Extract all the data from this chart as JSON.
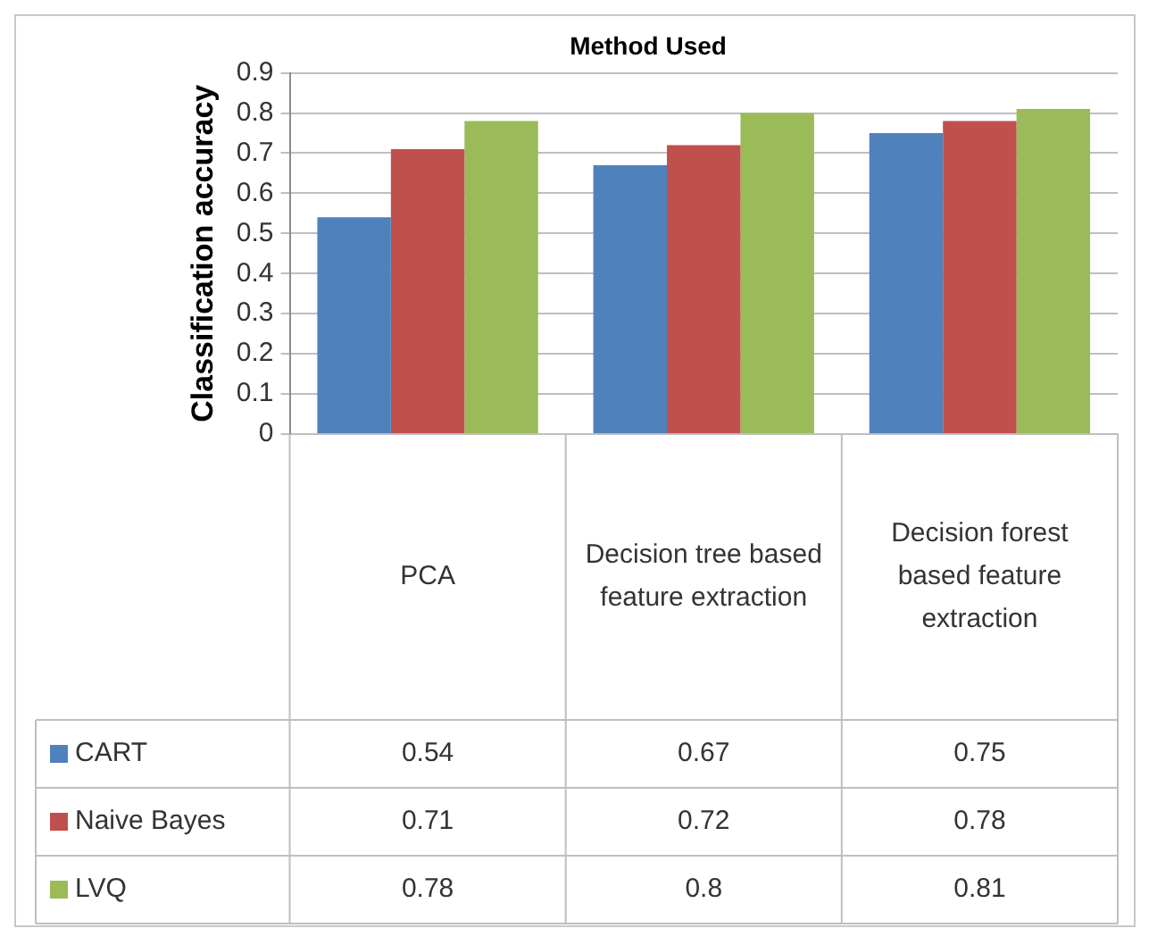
{
  "chart_data": {
    "type": "bar",
    "title": "Method Used",
    "ylabel": "Classification accuracy",
    "categories": [
      "PCA",
      "Decision tree based feature extraction",
      "Decision forest based feature extraction"
    ],
    "series": [
      {
        "name": "CART",
        "color": "#4f81bd",
        "values": [
          0.54,
          0.67,
          0.75
        ]
      },
      {
        "name": "Naive Bayes",
        "color": "#c0504d",
        "values": [
          0.71,
          0.72,
          0.78
        ]
      },
      {
        "name": "LVQ",
        "color": "#9bbb59",
        "values": [
          0.78,
          0.8,
          0.81
        ]
      }
    ],
    "ylim": [
      0,
      0.9
    ],
    "yticks": [
      0,
      0.1,
      0.2,
      0.3,
      0.4,
      0.5,
      0.6,
      0.7,
      0.8,
      0.9
    ],
    "grid": "y",
    "data_labels": true,
    "legend": "bottom left"
  }
}
